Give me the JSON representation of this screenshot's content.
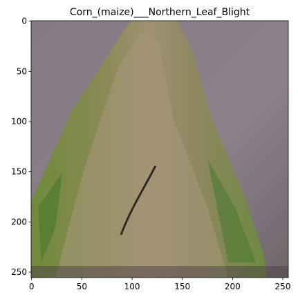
{
  "chart_data": {
    "type": "image",
    "title": "Corn_(maize)___Northern_Leaf_Blight",
    "xlim": [
      -0.5,
      255.5
    ],
    "ylim": [
      255.5,
      -0.5
    ],
    "xticks": [
      0,
      50,
      100,
      150,
      200,
      250
    ],
    "yticks": [
      0,
      50,
      100,
      150,
      200,
      250
    ]
  }
}
